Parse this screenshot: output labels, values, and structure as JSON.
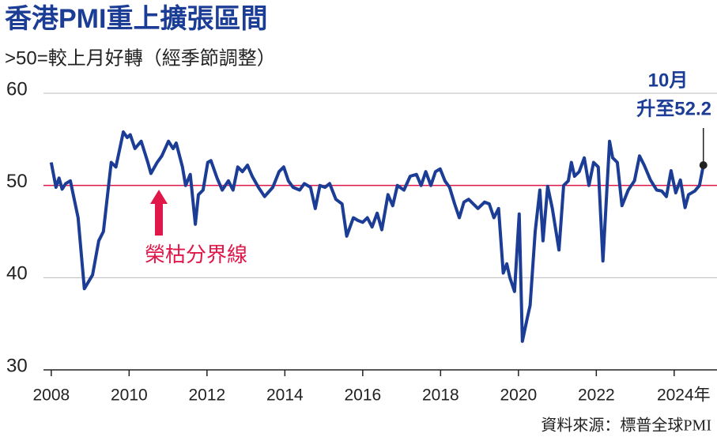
{
  "chart_data": {
    "type": "line",
    "title": "香港PMI重上擴張區間",
    "subtitle": ">50=較上月好轉（經季節調整）",
    "source": "資料來源：標普全球PMI",
    "reference_line": {
      "value": 50,
      "label": "榮枯分界線",
      "color": "#e0184a"
    },
    "annotation": {
      "lines": [
        "10月",
        "升至52.2"
      ],
      "x": 2024.75,
      "y": 52.2
    },
    "x": [
      2008.0,
      2008.12,
      2008.2,
      2008.28,
      2008.37,
      2008.49,
      2008.69,
      2008.85,
      2009.06,
      2009.22,
      2009.34,
      2009.54,
      2009.66,
      2009.85,
      2009.95,
      2010.03,
      2010.15,
      2010.31,
      2010.48,
      2010.56,
      2010.72,
      2010.84,
      2011.01,
      2011.13,
      2011.21,
      2011.37,
      2011.45,
      2011.57,
      2011.7,
      2011.78,
      2011.9,
      2012.02,
      2012.1,
      2012.26,
      2012.39,
      2012.55,
      2012.67,
      2012.79,
      2012.91,
      2013.04,
      2013.16,
      2013.32,
      2013.48,
      2013.69,
      2013.85,
      2013.97,
      2014.09,
      2014.21,
      2014.38,
      2014.5,
      2014.66,
      2014.78,
      2014.9,
      2015.03,
      2015.15,
      2015.31,
      2015.47,
      2015.59,
      2015.76,
      2015.88,
      2016.0,
      2016.12,
      2016.24,
      2016.37,
      2016.49,
      2016.65,
      2016.77,
      2016.89,
      2017.06,
      2017.22,
      2017.38,
      2017.5,
      2017.62,
      2017.75,
      2017.87,
      2017.99,
      2018.11,
      2018.23,
      2018.36,
      2018.48,
      2018.6,
      2018.72,
      2018.84,
      2018.96,
      2019.13,
      2019.25,
      2019.37,
      2019.49,
      2019.61,
      2019.7,
      2019.78,
      2019.9,
      2020.02,
      2020.1,
      2020.22,
      2020.3,
      2020.43,
      2020.55,
      2020.63,
      2020.75,
      2020.87,
      2021.04,
      2021.16,
      2021.28,
      2021.36,
      2021.44,
      2021.56,
      2021.69,
      2021.81,
      2021.93,
      2022.05,
      2022.17,
      2022.34,
      2022.42,
      2022.54,
      2022.66,
      2022.82,
      2022.98,
      2023.11,
      2023.23,
      2023.39,
      2023.55,
      2023.68,
      2023.8,
      2023.92,
      2024.04,
      2024.16,
      2024.28,
      2024.37,
      2024.53,
      2024.65,
      2024.75
    ],
    "series": [
      {
        "name": "香港PMI",
        "color": "#1c3d96",
        "values": [
          52.5,
          49.8,
          50.8,
          49.6,
          50.2,
          50.5,
          46.5,
          38.8,
          40.3,
          44.0,
          45.0,
          52.5,
          52.0,
          55.8,
          55.2,
          55.5,
          54.0,
          54.8,
          52.5,
          51.3,
          52.5,
          53.2,
          54.8,
          54.0,
          54.6,
          52.0,
          50.0,
          51.2,
          45.8,
          49.0,
          49.5,
          52.5,
          52.7,
          50.8,
          49.5,
          50.5,
          49.5,
          52.0,
          51.5,
          52.2,
          51.0,
          49.8,
          48.8,
          49.8,
          51.5,
          52.0,
          50.5,
          49.8,
          49.5,
          50.2,
          49.8,
          47.5,
          50.0,
          49.8,
          50.2,
          48.5,
          48.0,
          44.5,
          46.5,
          46.2,
          46.0,
          46.5,
          45.5,
          47.0,
          45.2,
          49.0,
          47.8,
          50.0,
          49.5,
          51.0,
          51.2,
          50.0,
          51.5,
          50.0,
          51.5,
          51.8,
          50.5,
          49.8,
          48.0,
          46.5,
          48.2,
          48.5,
          48.0,
          47.5,
          48.2,
          48.0,
          46.5,
          47.5,
          40.5,
          41.5,
          40.0,
          38.5,
          46.9,
          33.1,
          35.5,
          37.0,
          45.0,
          49.5,
          44.0,
          49.9,
          47.5,
          43.0,
          50.0,
          50.5,
          52.5,
          51.0,
          51.5,
          53.0,
          50.0,
          52.5,
          52.0,
          41.8,
          54.8,
          53.0,
          52.5,
          47.8,
          49.5,
          50.5,
          53.2,
          52.2,
          50.6,
          49.5,
          49.4,
          48.8,
          51.6,
          49.2,
          50.6,
          47.6,
          49.0,
          49.4,
          50.0,
          52.2
        ]
      }
    ],
    "xlim": [
      2007.8,
      2025.1
    ],
    "xticks": [
      2008,
      2010,
      2012,
      2014,
      2016,
      2018,
      2020,
      2022,
      {
        "value": 2024,
        "label": "2024年"
      }
    ],
    "ylim": [
      30,
      60
    ],
    "yticks": [
      30,
      40,
      50,
      60
    ],
    "grid": true
  }
}
